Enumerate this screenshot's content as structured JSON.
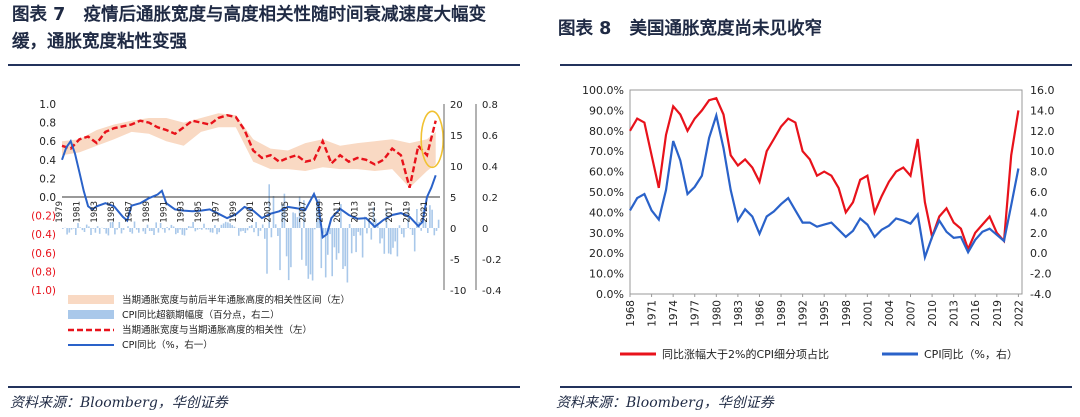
{
  "left": {
    "title": "图表 7   疫情后通胀宽度与高度相关性随时间衰减速度大幅变缓，通胀宽度粘性变强",
    "source": "资料来源：Bloomberg，华创证券"
  },
  "right": {
    "title": "图表 8   美国通胀宽度尚未见收窄",
    "source": "资料来源：Bloomberg，华创证券"
  },
  "colors": {
    "red": "#e8121b",
    "blue": "#2a62c9",
    "band": "#f9d9c3",
    "bar": "#a9c8ea",
    "navy": "#23335c",
    "highlight": "#f1c232"
  },
  "chart_data": [
    {
      "type": "line",
      "title": "",
      "y_left": {
        "ticks": [
          "1.0",
          "0.8",
          "0.6",
          "0.4",
          "0.2",
          "0.0",
          "(0.2)",
          "(0.4)",
          "(0.6)",
          "(0.8)",
          "(1.0)"
        ],
        "lim": [
          -1,
          1
        ]
      },
      "y_right1": {
        "ticks": [
          "20",
          "15",
          "10",
          "5",
          "0",
          "-5",
          "-10"
        ],
        "lim": [
          -10,
          20
        ]
      },
      "y_right2": {
        "ticks": [
          "0.8",
          "0.6",
          "0.4",
          "0.2",
          "0",
          "-0.2",
          "-0.4"
        ],
        "lim": [
          -0.4,
          0.8
        ]
      },
      "x_ticks": [
        "1979",
        "1981",
        "1983",
        "1985",
        "1987",
        "1989",
        "1991",
        "1993",
        "1995",
        "1997",
        "1999",
        "2001",
        "2003",
        "2005",
        "2007",
        "2009",
        "2011",
        "2013",
        "2015",
        "2017",
        "2019",
        "2021"
      ],
      "x_lim": [
        1979,
        2022.5
      ],
      "legend": [
        "当期通胀宽度与前后半年通胀高度的相关性区间（左）",
        "CPI同比超额期幅度（百分点，右二）",
        "当期通胀宽度与当期通胀高度的相关性（左）",
        "CPI同比（%，右一）"
      ],
      "series": [
        {
          "name": "当期通胀宽度与当期通胀高度的相关性（左）",
          "axis": "left",
          "x": [
            1979,
            1980,
            1981,
            1982,
            1983,
            1984,
            1985,
            1986,
            1987,
            1988,
            1989,
            1990,
            1991,
            1992,
            1993,
            1994,
            1995,
            1996,
            1997,
            1998,
            1999,
            2000,
            2001,
            2002,
            2003,
            2004,
            2005,
            2006,
            2007,
            2008,
            2009,
            2010,
            2011,
            2012,
            2013,
            2014,
            2015,
            2016,
            2017,
            2018,
            2019,
            2020,
            2021,
            2022
          ],
          "y": [
            0.55,
            0.52,
            0.62,
            0.65,
            0.58,
            0.7,
            0.74,
            0.76,
            0.78,
            0.82,
            0.8,
            0.75,
            0.72,
            0.68,
            0.75,
            0.82,
            0.8,
            0.78,
            0.85,
            0.88,
            0.86,
            0.72,
            0.5,
            0.42,
            0.45,
            0.38,
            0.42,
            0.45,
            0.38,
            0.4,
            0.6,
            0.36,
            0.45,
            0.38,
            0.42,
            0.4,
            0.35,
            0.4,
            0.52,
            0.45,
            0.1,
            0.55,
            0.45,
            0.82
          ]
        },
        {
          "name": "CPI同比（%，右一）",
          "axis": "right1",
          "x": [
            1979,
            1979.5,
            1980,
            1980.5,
            1981,
            1981.5,
            1982,
            1982.5,
            1983,
            1984,
            1985,
            1986,
            1986.5,
            1987,
            1988,
            1989,
            1990,
            1990.5,
            1991,
            1992,
            1993,
            1994,
            1995,
            1996,
            1997,
            1998,
            1999,
            2000,
            2001,
            2002,
            2003,
            2004,
            2005,
            2006,
            2007,
            2008,
            2008.5,
            2009,
            2009.5,
            2010,
            2011,
            2012,
            2013,
            2014,
            2015,
            2016,
            2017,
            2018,
            2019,
            2020,
            2020.5,
            2021,
            2021.5,
            2022
          ],
          "y": [
            11,
            13,
            14,
            12,
            9,
            6,
            3.5,
            3,
            3.5,
            4,
            3.5,
            1.8,
            1.2,
            3.6,
            4,
            4.8,
            5.4,
            6,
            4,
            3,
            2.8,
            2.7,
            2.8,
            3,
            2.3,
            1.6,
            2.2,
            3.4,
            2.8,
            1.6,
            2.3,
            2.7,
            3.4,
            3.2,
            2.9,
            5.5,
            3.8,
            -1.5,
            -1,
            1.6,
            3.1,
            2.1,
            1.5,
            1.6,
            0.2,
            1.3,
            2.1,
            2.4,
            1.8,
            0.3,
            1,
            5,
            6.5,
            8.5
          ]
        },
        {
          "name": "当期通胀宽度与前后半年通胀高度的相关性区间（左）",
          "axis": "left",
          "kind": "band",
          "x": [
            1979,
            1981,
            1983,
            1985,
            1987,
            1989,
            1991,
            1993,
            1995,
            1997,
            1999,
            2001,
            2003,
            2005,
            2007,
            2009,
            2011,
            2013,
            2015,
            2017,
            2019,
            2021,
            2022
          ],
          "low": [
            0.45,
            0.48,
            0.55,
            0.62,
            0.7,
            0.68,
            0.6,
            0.55,
            0.7,
            0.75,
            0.75,
            0.38,
            0.3,
            0.3,
            0.28,
            0.32,
            0.3,
            0.3,
            0.28,
            0.3,
            0.1,
            0.28,
            0.35
          ],
          "high": [
            0.6,
            0.62,
            0.72,
            0.78,
            0.82,
            0.85,
            0.85,
            0.8,
            0.85,
            0.9,
            0.88,
            0.62,
            0.52,
            0.5,
            0.58,
            0.62,
            0.55,
            0.58,
            0.6,
            0.62,
            0.58,
            0.62,
            0.7
          ]
        }
      ]
    },
    {
      "type": "line",
      "title": "",
      "y_left": {
        "ticks": [
          "100.0%",
          "90.0%",
          "80.0%",
          "70.0%",
          "60.0%",
          "50.0%",
          "40.0%",
          "30.0%",
          "20.0%",
          "10.0%",
          "0.0%"
        ],
        "lim": [
          0,
          100
        ]
      },
      "y_right": {
        "ticks": [
          "16.0",
          "14.0",
          "12.0",
          "10.0",
          "8.0",
          "6.0",
          "4.0",
          "2.0",
          "0.0",
          "-2.0",
          "-4.0"
        ],
        "lim": [
          -4,
          16
        ]
      },
      "x_ticks": [
        "1968",
        "1971",
        "1974",
        "1977",
        "1980",
        "1983",
        "1986",
        "1989",
        "1992",
        "1995",
        "1998",
        "2001",
        "2004",
        "2007",
        "2010",
        "2013",
        "2016",
        "2019",
        "2022"
      ],
      "x_lim": [
        1968,
        2022.5
      ],
      "legend": [
        "同比涨幅大于2%的CPI细分项占比",
        "CPI同比（%，右）"
      ],
      "series": [
        {
          "name": "同比涨幅大于2%的CPI细分项占比",
          "axis": "left",
          "x": [
            1968,
            1969,
            1970,
            1971,
            1972,
            1973,
            1974,
            1975,
            1976,
            1977,
            1978,
            1979,
            1980,
            1981,
            1982,
            1983,
            1984,
            1985,
            1986,
            1987,
            1988,
            1989,
            1990,
            1991,
            1992,
            1993,
            1994,
            1995,
            1996,
            1997,
            1998,
            1999,
            2000,
            2001,
            2002,
            2003,
            2004,
            2005,
            2006,
            2007,
            2008,
            2009,
            2010,
            2011,
            2012,
            2013,
            2014,
            2015,
            2016,
            2017,
            2018,
            2019,
            2020,
            2021,
            2022
          ],
          "y": [
            80,
            86,
            84,
            68,
            52,
            78,
            92,
            88,
            80,
            86,
            90,
            95,
            96,
            88,
            68,
            63,
            66,
            62,
            55,
            70,
            76,
            82,
            86,
            84,
            70,
            66,
            58,
            60,
            58,
            52,
            40,
            45,
            56,
            58,
            40,
            48,
            55,
            60,
            62,
            58,
            76,
            45,
            28,
            38,
            42,
            35,
            32,
            22,
            30,
            34,
            38,
            30,
            26,
            68,
            90
          ]
        },
        {
          "name": "CPI同比（%，右）",
          "axis": "right",
          "x": [
            1968,
            1969,
            1970,
            1971,
            1972,
            1973,
            1974,
            1975,
            1976,
            1977,
            1978,
            1979,
            1980,
            1981,
            1982,
            1983,
            1984,
            1985,
            1986,
            1987,
            1988,
            1989,
            1990,
            1991,
            1992,
            1993,
            1994,
            1995,
            1996,
            1997,
            1998,
            1999,
            2000,
            2001,
            2002,
            2003,
            2004,
            2005,
            2006,
            2007,
            2008,
            2009,
            2010,
            2011,
            2012,
            2013,
            2014,
            2015,
            2016,
            2017,
            2018,
            2019,
            2020,
            2021,
            2022
          ],
          "y": [
            4.2,
            5.4,
            5.8,
            4.2,
            3.3,
            6.2,
            11,
            9.1,
            5.8,
            6.5,
            7.6,
            11.3,
            13.5,
            10.3,
            6.2,
            3.2,
            4.3,
            3.6,
            1.9,
            3.6,
            4.1,
            4.8,
            5.4,
            4.2,
            3,
            3,
            2.6,
            2.8,
            3,
            2.3,
            1.6,
            2.2,
            3.4,
            2.8,
            1.6,
            2.3,
            2.7,
            3.4,
            3.2,
            2.9,
            3.8,
            -0.4,
            1.6,
            3.2,
            2.1,
            1.5,
            1.6,
            0.1,
            1.3,
            2.1,
            2.4,
            1.8,
            1.2,
            4.7,
            8.3
          ]
        }
      ]
    }
  ]
}
